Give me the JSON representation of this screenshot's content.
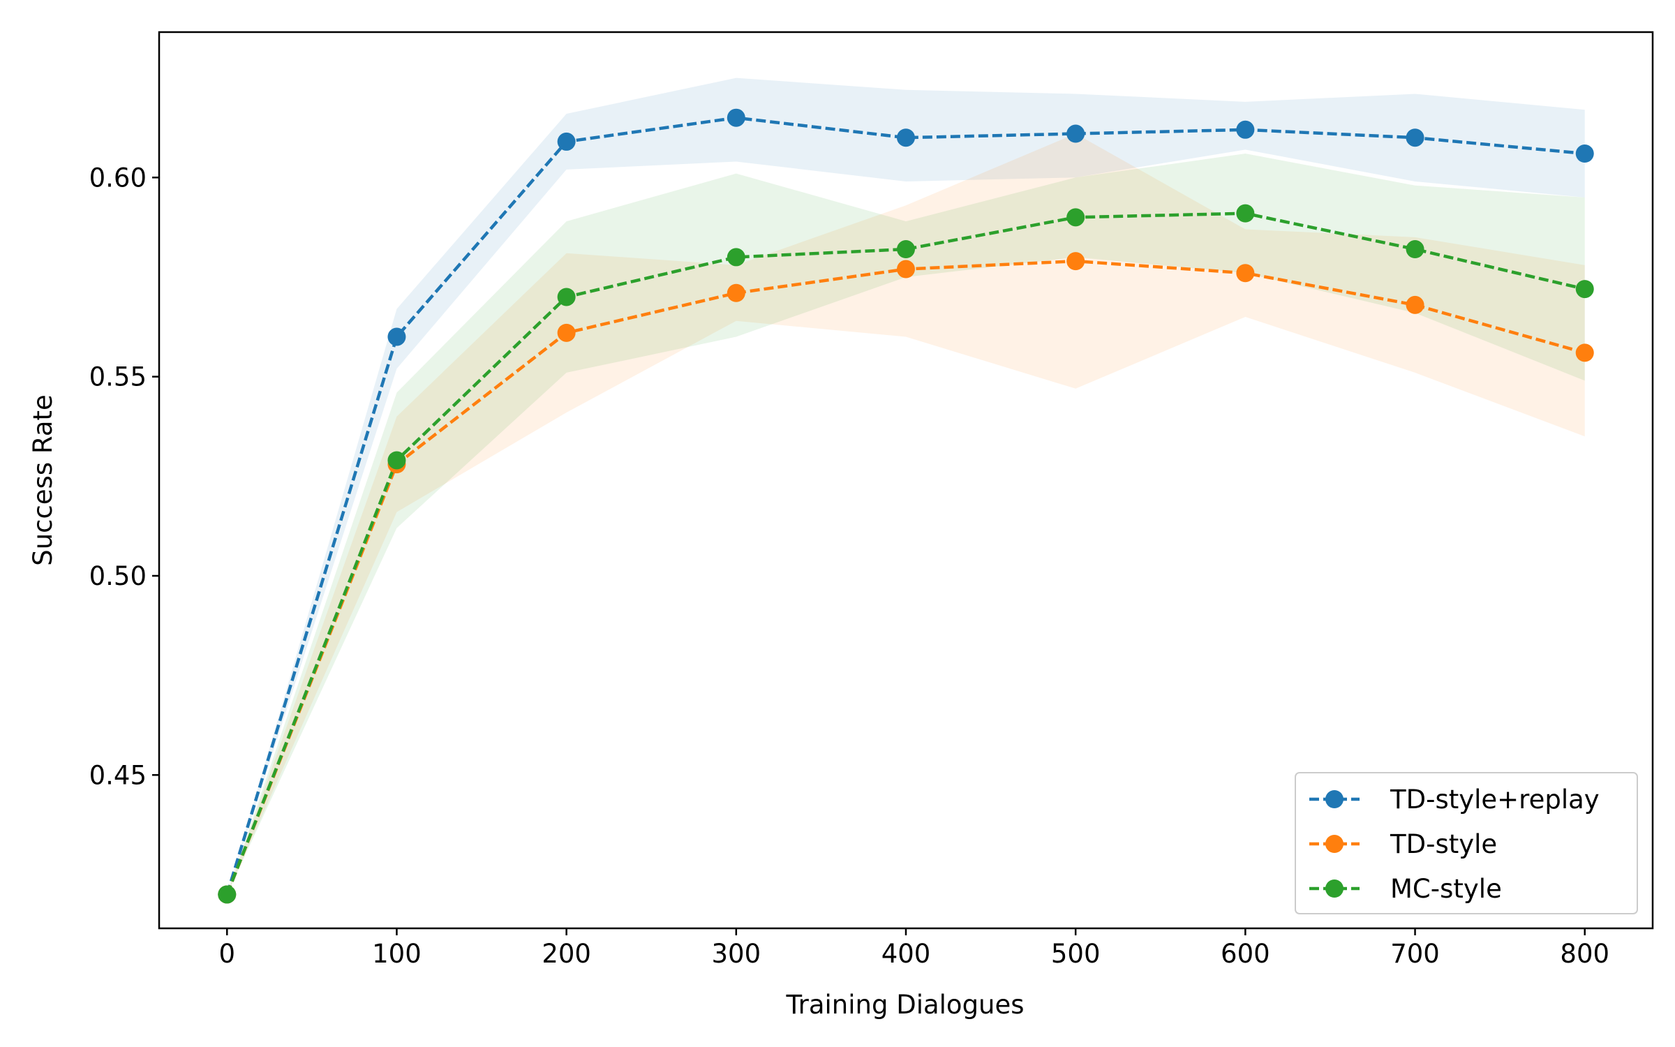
{
  "chart_data": {
    "type": "line",
    "title": "",
    "xlabel": "Training Dialogues",
    "ylabel": "Success Rate",
    "xlim": [
      -40,
      840
    ],
    "ylim": [
      0.4115,
      0.6365
    ],
    "x_ticks": [
      0,
      100,
      200,
      300,
      400,
      500,
      600,
      700,
      800
    ],
    "x_tick_labels": [
      "0",
      "100",
      "200",
      "300",
      "400",
      "500",
      "600",
      "700",
      "800"
    ],
    "y_ticks": [
      0.45,
      0.5,
      0.55,
      0.6
    ],
    "y_tick_labels": [
      "0.45",
      "0.50",
      "0.55",
      "0.60"
    ],
    "grid": false,
    "legend_position": "lower-right",
    "x": [
      0,
      100,
      200,
      300,
      400,
      500,
      600,
      700,
      800
    ],
    "series": [
      {
        "name": "TD-style+replay",
        "color": "#1f77b4",
        "values": [
          0.42,
          0.56,
          0.609,
          0.615,
          0.61,
          0.611,
          0.612,
          0.61,
          0.606
        ],
        "band_upper": [
          0.42,
          0.567,
          0.616,
          0.625,
          0.622,
          0.621,
          0.619,
          0.621,
          0.617
        ],
        "band_lower": [
          0.42,
          0.552,
          0.602,
          0.604,
          0.599,
          0.6,
          0.607,
          0.599,
          0.595
        ]
      },
      {
        "name": "TD-style",
        "color": "#ff7f0e",
        "values": [
          0.42,
          0.528,
          0.561,
          0.571,
          0.577,
          0.579,
          0.576,
          0.568,
          0.556
        ],
        "band_upper": [
          0.42,
          0.54,
          0.581,
          0.578,
          0.593,
          0.611,
          0.587,
          0.585,
          0.578
        ],
        "band_lower": [
          0.42,
          0.516,
          0.541,
          0.564,
          0.56,
          0.547,
          0.565,
          0.551,
          0.535
        ]
      },
      {
        "name": "MC-style",
        "color": "#2ca02c",
        "values": [
          0.42,
          0.529,
          0.57,
          0.58,
          0.582,
          0.59,
          0.591,
          0.582,
          0.572
        ],
        "band_upper": [
          0.42,
          0.546,
          0.589,
          0.601,
          0.589,
          0.6,
          0.606,
          0.598,
          0.595
        ],
        "band_lower": [
          0.42,
          0.512,
          0.551,
          0.56,
          0.575,
          0.58,
          0.576,
          0.566,
          0.549
        ]
      }
    ]
  }
}
